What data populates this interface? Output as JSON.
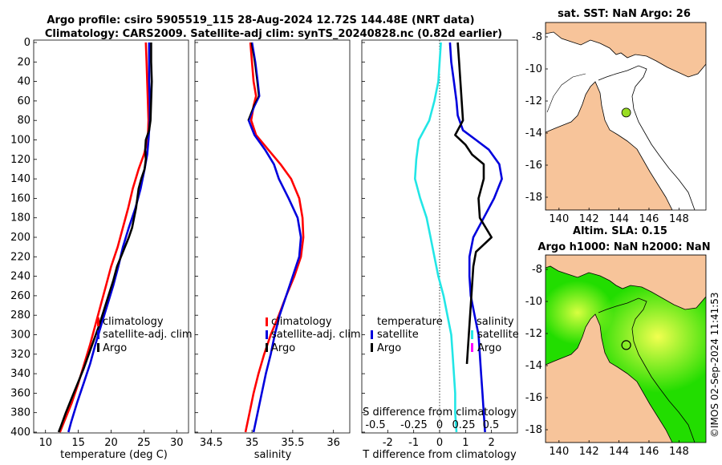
{
  "header": {
    "title1": "Argo profile: csiro 5905519_115 28-Aug-2024 12.72S 144.48E (NRT data)",
    "title2": "Climatology: CARS2009. Satellite-adj clim: synTS_20240828.nc (0.82d earlier)",
    "credit": "©IMOS 02-Sep-2024 11:41:53"
  },
  "colors": {
    "climatology": "#ff0000",
    "satellite": "#0000dd",
    "argo": "#000000",
    "temp_diff": "#22e6e6",
    "land": "#f7c49a",
    "sla_green": "#22dd00",
    "sla_yellow": "#e6ff3a"
  },
  "chart_data": [
    {
      "type": "line",
      "title": "",
      "xlabel": "temperature (deg C)",
      "ylabel": "",
      "xlim": [
        7.5,
        32
      ],
      "ylim": [
        400,
        0
      ],
      "xticks": [
        10,
        15,
        20,
        25,
        30
      ],
      "yticks": [
        0,
        20,
        40,
        60,
        80,
        100,
        120,
        140,
        160,
        180,
        200,
        220,
        240,
        260,
        280,
        300,
        320,
        340,
        360,
        380,
        400
      ],
      "legend": [
        "climatology",
        "satellite-adj. clim",
        "Argo"
      ],
      "series": [
        {
          "name": "climatology",
          "color_key": "climatology",
          "points": [
            [
              25.3,
              0
            ],
            [
              25.4,
              20
            ],
            [
              25.5,
              40
            ],
            [
              25.6,
              60
            ],
            [
              25.7,
              80
            ],
            [
              25.6,
              100
            ],
            [
              25.0,
              115
            ],
            [
              24.2,
              130
            ],
            [
              23.3,
              150
            ],
            [
              22.6,
              170
            ],
            [
              21.8,
              190
            ],
            [
              21.0,
              210
            ],
            [
              20.0,
              230
            ],
            [
              19.2,
              250
            ],
            [
              18.4,
              270
            ],
            [
              17.6,
              290
            ],
            [
              16.8,
              310
            ],
            [
              15.9,
              330
            ],
            [
              15.0,
              350
            ],
            [
              14.0,
              370
            ],
            [
              12.8,
              390
            ],
            [
              12.2,
              400
            ]
          ]
        },
        {
          "name": "satellite-adj. clim",
          "color_key": "satellite",
          "points": [
            [
              25.8,
              0
            ],
            [
              25.8,
              20
            ],
            [
              25.8,
              40
            ],
            [
              25.9,
              60
            ],
            [
              25.9,
              80
            ],
            [
              25.7,
              100
            ],
            [
              25.5,
              115
            ],
            [
              25.1,
              130
            ],
            [
              24.5,
              150
            ],
            [
              23.7,
              170
            ],
            [
              22.7,
              190
            ],
            [
              21.8,
              210
            ],
            [
              21.1,
              230
            ],
            [
              20.3,
              250
            ],
            [
              19.4,
              270
            ],
            [
              18.5,
              290
            ],
            [
              17.6,
              310
            ],
            [
              16.8,
              330
            ],
            [
              15.8,
              350
            ],
            [
              14.8,
              370
            ],
            [
              13.9,
              390
            ],
            [
              13.5,
              400
            ]
          ]
        },
        {
          "name": "Argo",
          "color_key": "argo",
          "points": [
            [
              26.1,
              0
            ],
            [
              26.1,
              20
            ],
            [
              26.2,
              40
            ],
            [
              26.1,
              60
            ],
            [
              26.0,
              80
            ],
            [
              25.8,
              90
            ],
            [
              25.3,
              100
            ],
            [
              25.2,
              110
            ],
            [
              25.3,
              120
            ],
            [
              25.1,
              130
            ],
            [
              24.6,
              140
            ],
            [
              24.2,
              150
            ],
            [
              24.0,
              160
            ],
            [
              23.8,
              170
            ],
            [
              23.5,
              180
            ],
            [
              23.2,
              190
            ],
            [
              22.7,
              200
            ],
            [
              22.1,
              210
            ],
            [
              21.5,
              220
            ],
            [
              20.9,
              230
            ],
            [
              20.3,
              245
            ],
            [
              19.6,
              260
            ],
            [
              18.9,
              275
            ],
            [
              18.2,
              290
            ],
            [
              17.4,
              305
            ],
            [
              16.6,
              320
            ],
            [
              15.8,
              335
            ],
            [
              14.9,
              350
            ],
            [
              14.0,
              365
            ],
            [
              13.1,
              380
            ],
            [
              12.3,
              395
            ],
            [
              12.0,
              400
            ]
          ]
        }
      ]
    },
    {
      "type": "line",
      "title": "",
      "xlabel": "salinity",
      "ylabel": "",
      "xlim": [
        34.3,
        36.2
      ],
      "ylim": [
        400,
        0
      ],
      "xticks": [
        34.5,
        35,
        35.5,
        36
      ],
      "legend": [
        "climatology",
        "satellite-adj. clim",
        "Argo"
      ],
      "series": [
        {
          "name": "climatology",
          "color_key": "climatology",
          "points": [
            [
              34.98,
              0
            ],
            [
              35.0,
              20
            ],
            [
              35.02,
              40
            ],
            [
              35.05,
              55
            ],
            [
              35.02,
              65
            ],
            [
              34.99,
              80
            ],
            [
              35.05,
              95
            ],
            [
              35.2,
              110
            ],
            [
              35.35,
              125
            ],
            [
              35.48,
              140
            ],
            [
              35.58,
              160
            ],
            [
              35.62,
              180
            ],
            [
              35.63,
              200
            ],
            [
              35.6,
              220
            ],
            [
              35.52,
              240
            ],
            [
              35.42,
              260
            ],
            [
              35.33,
              280
            ],
            [
              35.23,
              300
            ],
            [
              35.15,
              320
            ],
            [
              35.08,
              340
            ],
            [
              35.02,
              360
            ],
            [
              34.97,
              380
            ],
            [
              34.92,
              400
            ]
          ]
        },
        {
          "name": "satellite-adj. clim",
          "color_key": "satellite",
          "points": [
            [
              35.0,
              0
            ],
            [
              35.04,
              20
            ],
            [
              35.07,
              40
            ],
            [
              35.09,
              55
            ],
            [
              35.03,
              65
            ],
            [
              34.96,
              80
            ],
            [
              35.03,
              95
            ],
            [
              35.16,
              110
            ],
            [
              35.27,
              125
            ],
            [
              35.33,
              140
            ],
            [
              35.45,
              160
            ],
            [
              35.56,
              180
            ],
            [
              35.6,
              200
            ],
            [
              35.58,
              220
            ],
            [
              35.5,
              240
            ],
            [
              35.42,
              260
            ],
            [
              35.34,
              280
            ],
            [
              35.28,
              300
            ],
            [
              35.23,
              320
            ],
            [
              35.17,
              340
            ],
            [
              35.12,
              360
            ],
            [
              35.07,
              380
            ],
            [
              35.02,
              400
            ]
          ]
        }
      ]
    },
    {
      "type": "line",
      "title": "",
      "xlabel": "T difference from climatology",
      "ylabel": "",
      "xlim": [
        -3,
        3
      ],
      "ylim": [
        400,
        0
      ],
      "xticks": [
        -2,
        -1,
        0,
        1,
        2
      ],
      "secondary_xlabel": "S difference from climatology",
      "secondary_xticks": [
        "-0.5",
        "-0.25",
        "0",
        "0.25",
        "0.5"
      ],
      "legend_temperature_title": "temperature",
      "legend_salinity_title": "salinity",
      "legend_temperature": [
        "satellite",
        "Argo"
      ],
      "legend_salinity": [
        "satellite",
        "Argo"
      ],
      "series": [
        {
          "name": "T satellite",
          "color_key": "temp_diff",
          "points": [
            [
              0.05,
              0
            ],
            [
              0.0,
              20
            ],
            [
              -0.05,
              40
            ],
            [
              -0.2,
              60
            ],
            [
              -0.4,
              80
            ],
            [
              -0.8,
              100
            ],
            [
              -0.9,
              120
            ],
            [
              -0.95,
              140
            ],
            [
              -0.75,
              160
            ],
            [
              -0.5,
              180
            ],
            [
              -0.35,
              200
            ],
            [
              -0.2,
              220
            ],
            [
              -0.05,
              240
            ],
            [
              0.15,
              260
            ],
            [
              0.3,
              280
            ],
            [
              0.45,
              300
            ],
            [
              0.5,
              320
            ],
            [
              0.55,
              340
            ],
            [
              0.6,
              360
            ],
            [
              0.6,
              380
            ],
            [
              0.65,
              400
            ]
          ]
        },
        {
          "name": "T Argo-sat",
          "color_key": "satellite",
          "points": [
            [
              0.4,
              0
            ],
            [
              0.45,
              20
            ],
            [
              0.55,
              40
            ],
            [
              0.65,
              60
            ],
            [
              0.7,
              75
            ],
            [
              0.9,
              90
            ],
            [
              1.4,
              100
            ],
            [
              1.9,
              110
            ],
            [
              2.3,
              125
            ],
            [
              2.4,
              140
            ],
            [
              2.1,
              160
            ],
            [
              1.7,
              180
            ],
            [
              1.3,
              200
            ],
            [
              1.15,
              220
            ],
            [
              1.15,
              240
            ],
            [
              1.2,
              260
            ],
            [
              1.35,
              280
            ],
            [
              1.5,
              300
            ],
            [
              1.55,
              320
            ],
            [
              1.6,
              340
            ],
            [
              1.65,
              360
            ],
            [
              1.7,
              380
            ],
            [
              1.75,
              400
            ]
          ]
        },
        {
          "name": "S Argo",
          "color_key": "argo",
          "points": [
            [
              0.7,
              0
            ],
            [
              0.75,
              20
            ],
            [
              0.8,
              40
            ],
            [
              0.85,
              60
            ],
            [
              0.9,
              80
            ],
            [
              0.6,
              95
            ],
            [
              1.0,
              105
            ],
            [
              1.25,
              115
            ],
            [
              1.7,
              125
            ],
            [
              1.7,
              140
            ],
            [
              1.5,
              160
            ],
            [
              1.55,
              180
            ],
            [
              2.0,
              200
            ],
            [
              1.4,
              215
            ],
            [
              1.3,
              230
            ],
            [
              1.25,
              250
            ],
            [
              1.2,
              270
            ],
            [
              1.15,
              290
            ],
            [
              1.1,
              310
            ],
            [
              1.05,
              330
            ]
          ]
        }
      ]
    },
    {
      "type": "map",
      "title": "sat. SST: NaN Argo: 26",
      "xlim": [
        139,
        150
      ],
      "ylim": [
        -19,
        -7
      ],
      "xticks": [
        140,
        142,
        144,
        146,
        148
      ],
      "yticks": [
        -8,
        -10,
        -12,
        -14,
        -16,
        -18
      ],
      "argo_marker": {
        "lon": 144.48,
        "lat": -12.72
      }
    },
    {
      "type": "map",
      "title": "Altim. SLA: 0.15",
      "subtitle": "Argo h1000: NaN h2000: NaN",
      "xlim": [
        139,
        150
      ],
      "ylim": [
        -19,
        -7
      ],
      "xticks": [
        140,
        142,
        144,
        146,
        148
      ],
      "yticks": [
        -8,
        -10,
        -12,
        -14,
        -16,
        -18
      ],
      "argo_marker": {
        "lon": 144.48,
        "lat": -12.72
      }
    }
  ]
}
